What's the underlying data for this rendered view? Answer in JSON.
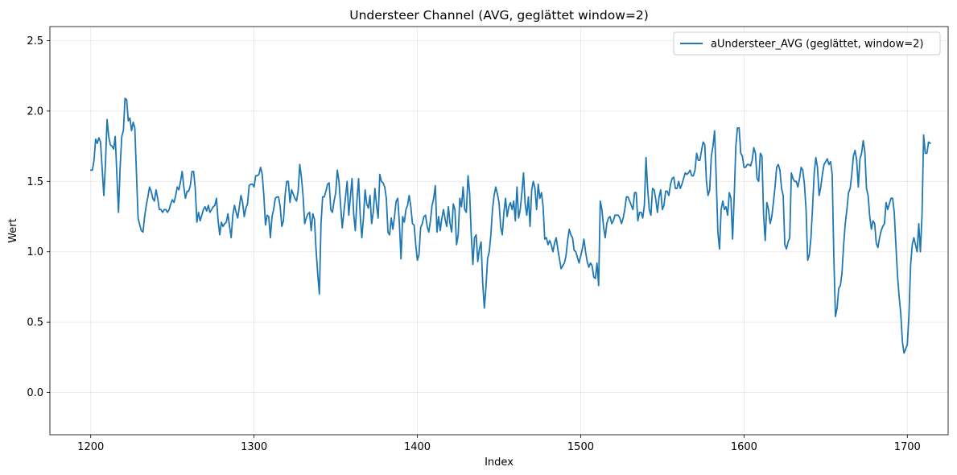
{
  "chart_data": {
    "type": "line",
    "title": "Understeer Channel (AVG, geglättet window=2)",
    "xlabel": "Index",
    "ylabel": "Wert",
    "xlim": [
      1175,
      1725
    ],
    "ylim": [
      -0.3,
      2.6
    ],
    "xticks": [
      1200,
      1300,
      1400,
      1500,
      1600,
      1700
    ],
    "yticks": [
      0.0,
      0.5,
      1.0,
      1.5,
      2.0,
      2.5
    ],
    "xtick_labels": [
      "1200",
      "1300",
      "1400",
      "1500",
      "1600",
      "1700"
    ],
    "ytick_labels": [
      "0.0",
      "0.5",
      "1.0",
      "1.5",
      "2.0",
      "2.5"
    ],
    "grid": true,
    "legend_position": "top-right",
    "series": [
      {
        "name": "aUndersteer_AVG (geglättet, window=2)",
        "color": "#1f77b4",
        "x_start": 1200,
        "x_step": 1,
        "values": [
          1.58,
          1.58,
          1.65,
          1.8,
          1.77,
          1.81,
          1.78,
          1.59,
          1.4,
          1.62,
          1.94,
          1.82,
          1.76,
          1.75,
          1.73,
          1.82,
          1.55,
          1.28,
          1.6,
          1.82,
          1.86,
          2.09,
          2.08,
          1.93,
          1.95,
          1.86,
          1.92,
          1.88,
          1.56,
          1.24,
          1.19,
          1.15,
          1.14,
          1.25,
          1.33,
          1.39,
          1.46,
          1.43,
          1.38,
          1.36,
          1.44,
          1.38,
          1.3,
          1.3,
          1.28,
          1.3,
          1.3,
          1.28,
          1.3,
          1.34,
          1.37,
          1.35,
          1.4,
          1.46,
          1.44,
          1.5,
          1.57,
          1.46,
          1.38,
          1.43,
          1.43,
          1.47,
          1.57,
          1.57,
          1.45,
          1.21,
          1.28,
          1.22,
          1.26,
          1.3,
          1.32,
          1.29,
          1.33,
          1.28,
          1.3,
          1.32,
          1.33,
          1.38,
          1.22,
          1.12,
          1.21,
          1.18,
          1.2,
          1.21,
          1.27,
          1.18,
          1.1,
          1.26,
          1.33,
          1.28,
          1.24,
          1.32,
          1.4,
          1.35,
          1.25,
          1.31,
          1.34,
          1.47,
          1.48,
          1.48,
          1.46,
          1.54,
          1.54,
          1.55,
          1.6,
          1.55,
          1.4,
          1.19,
          1.26,
          1.25,
          1.1,
          1.25,
          1.3,
          1.38,
          1.39,
          1.39,
          1.32,
          1.18,
          1.22,
          1.4,
          1.5,
          1.5,
          1.35,
          1.44,
          1.41,
          1.38,
          1.36,
          1.43,
          1.62,
          1.53,
          1.4,
          1.2,
          1.24,
          1.27,
          1.28,
          1.15,
          1.27,
          1.23,
          1.01,
          0.84,
          0.7,
          1.2,
          1.39,
          1.39,
          1.43,
          1.48,
          1.49,
          1.3,
          1.28,
          1.36,
          1.42,
          1.58,
          1.5,
          1.33,
          1.17,
          1.28,
          1.39,
          1.5,
          1.26,
          1.39,
          1.52,
          1.27,
          1.15,
          1.36,
          1.52,
          1.26,
          1.1,
          1.24,
          1.44,
          1.34,
          1.31,
          1.4,
          1.2,
          1.28,
          1.45,
          1.33,
          1.24,
          1.55,
          1.5,
          1.49,
          1.46,
          1.38,
          1.14,
          1.12,
          1.24,
          1.16,
          1.25,
          1.36,
          1.38,
          1.2,
          0.95,
          1.25,
          1.21,
          1.3,
          1.33,
          1.4,
          1.32,
          1.2,
          1.19,
          1.05,
          0.94,
          0.98,
          1.17,
          1.2,
          1.25,
          1.26,
          1.18,
          1.14,
          1.22,
          1.33,
          1.38,
          1.47,
          1.14,
          1.25,
          1.15,
          1.24,
          1.3,
          1.23,
          1.18,
          1.32,
          1.2,
          1.14,
          1.34,
          1.3,
          1.05,
          1.12,
          1.38,
          1.32,
          1.46,
          1.3,
          1.28,
          1.54,
          1.42,
          1.12,
          0.91,
          1.1,
          1.12,
          0.93,
          1.02,
          1.07,
          0.78,
          0.6,
          0.75,
          0.95,
          1.0,
          1.12,
          1.3,
          1.4,
          1.46,
          1.41,
          1.35,
          1.18,
          1.12,
          1.28,
          1.38,
          1.25,
          1.32,
          1.35,
          1.3,
          1.36,
          1.22,
          1.46,
          1.24,
          1.3,
          1.42,
          1.56,
          1.34,
          1.26,
          1.39,
          1.18,
          1.44,
          1.5,
          1.45,
          1.3,
          1.48,
          1.38,
          1.42,
          1.32,
          1.09,
          1.1,
          1.05,
          1.08,
          1.05,
          1.0,
          1.06,
          1.1,
          1.02,
          0.95,
          0.88,
          0.9,
          0.92,
          0.97,
          1.08,
          1.16,
          1.12,
          1.1,
          1.01,
          1.0,
          0.96,
          0.92,
          0.97,
          1.02,
          1.09,
          1.0,
          0.93,
          0.89,
          0.92,
          0.9,
          0.82,
          0.81,
          0.92,
          0.76,
          1.36,
          1.3,
          1.18,
          1.1,
          1.2,
          1.24,
          1.25,
          1.2,
          1.22,
          1.26,
          1.26,
          1.26,
          1.24,
          1.2,
          1.24,
          1.3,
          1.39,
          1.39,
          1.36,
          1.33,
          1.3,
          1.42,
          1.42,
          1.22,
          1.28,
          1.28,
          1.24,
          1.33,
          1.67,
          1.45,
          1.3,
          1.26,
          1.45,
          1.44,
          1.37,
          1.28,
          1.39,
          1.44,
          1.3,
          1.33,
          1.43,
          1.43,
          1.4,
          1.48,
          1.52,
          1.53,
          1.45,
          1.45,
          1.5,
          1.45,
          1.48,
          1.52,
          1.56,
          1.55,
          1.56,
          1.58,
          1.54,
          1.54,
          1.58,
          1.7,
          1.65,
          1.65,
          1.72,
          1.78,
          1.76,
          1.5,
          1.4,
          1.44,
          1.68,
          1.75,
          1.86,
          1.52,
          1.14,
          1.02,
          1.3,
          1.36,
          1.3,
          1.32,
          1.26,
          1.42,
          1.38,
          1.09,
          1.39,
          1.75,
          1.88,
          1.88,
          1.7,
          1.68,
          1.6,
          1.6,
          1.62,
          1.62,
          1.61,
          1.65,
          1.74,
          1.7,
          1.52,
          1.5,
          1.7,
          1.68,
          1.26,
          1.08,
          1.35,
          1.3,
          1.2,
          1.25,
          1.35,
          1.46,
          1.6,
          1.62,
          1.58,
          1.45,
          1.4,
          1.05,
          1.02,
          1.07,
          1.1,
          1.56,
          1.52,
          1.5,
          1.5,
          1.46,
          1.52,
          1.6,
          1.58,
          1.48,
          1.3,
          0.94,
          0.98,
          1.1,
          1.32,
          1.56,
          1.67,
          1.6,
          1.4,
          1.46,
          1.55,
          1.62,
          1.64,
          1.66,
          1.62,
          1.64,
          1.55,
          0.97,
          0.54,
          0.6,
          0.74,
          0.76,
          0.85,
          1.05,
          1.2,
          1.3,
          1.42,
          1.45,
          1.55,
          1.68,
          1.72,
          1.65,
          1.46,
          1.66,
          1.7,
          1.79,
          1.71,
          1.45,
          1.4,
          1.25,
          1.16,
          1.22,
          1.2,
          1.06,
          1.03,
          1.1,
          1.15,
          1.18,
          1.2,
          1.35,
          1.3,
          1.34,
          1.38,
          1.38,
          1.28,
          1.05,
          0.83,
          0.68,
          0.56,
          0.36,
          0.28,
          0.31,
          0.34,
          0.55,
          0.9,
          1.05,
          1.1,
          1.05,
          1.0,
          1.2,
          1.0,
          1.26,
          1.83,
          1.7,
          1.7,
          1.78,
          1.77
        ]
      }
    ]
  }
}
